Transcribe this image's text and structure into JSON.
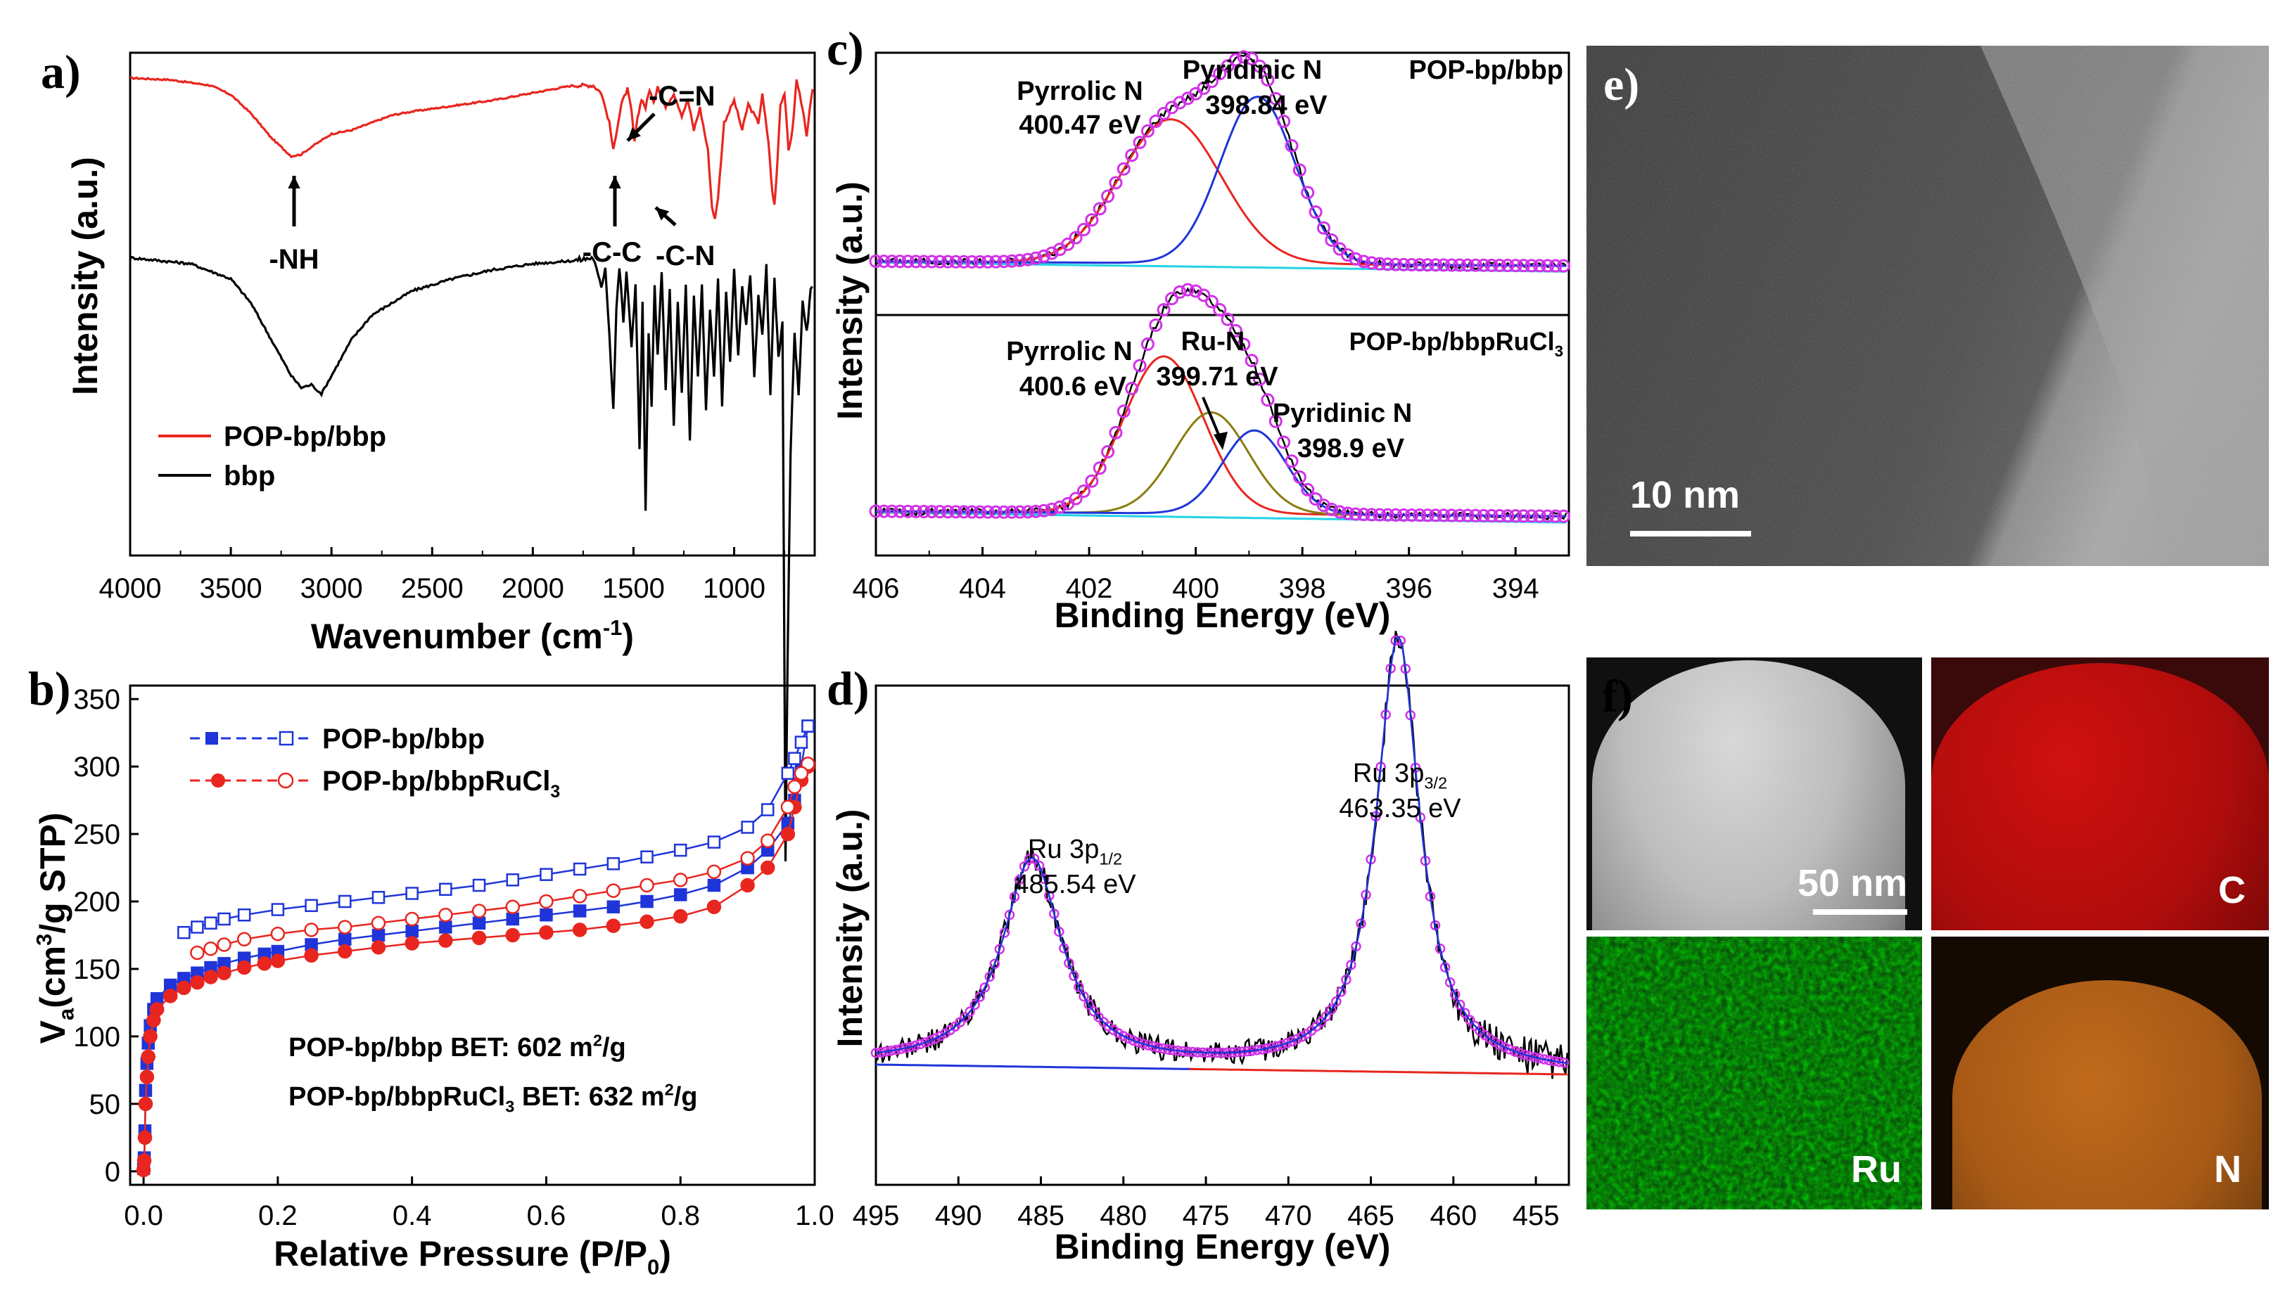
{
  "chart_data": [
    {
      "id": "a",
      "type": "line",
      "panel_label": "a)",
      "xlabel": "Wavenumber (cm",
      "xlabel_sup": "-1",
      "xlabel_tail": ")",
      "ylabel": "Intensity (a.u.)",
      "xlim": [
        4000,
        600
      ],
      "xticks": [
        4000,
        3500,
        3000,
        2500,
        2000,
        1500,
        1000
      ],
      "series": [
        {
          "name": "POP-bp/bbp",
          "color": "#e8261f",
          "offset": 1.0,
          "points": [
            [
              4000,
              0.94
            ],
            [
              3800,
              0.93
            ],
            [
              3600,
              0.9
            ],
            [
              3500,
              0.85
            ],
            [
              3400,
              0.75
            ],
            [
              3300,
              0.62
            ],
            [
              3200,
              0.52
            ],
            [
              3150,
              0.53
            ],
            [
              3100,
              0.57
            ],
            [
              3000,
              0.64
            ],
            [
              2900,
              0.66
            ],
            [
              2800,
              0.7
            ],
            [
              2700,
              0.74
            ],
            [
              2600,
              0.76
            ],
            [
              2400,
              0.79
            ],
            [
              2200,
              0.82
            ],
            [
              2000,
              0.86
            ],
            [
              1800,
              0.9
            ],
            [
              1700,
              0.9
            ],
            [
              1660,
              0.86
            ],
            [
              1620,
              0.7
            ],
            [
              1600,
              0.55
            ],
            [
              1580,
              0.68
            ],
            [
              1560,
              0.8
            ],
            [
              1530,
              0.88
            ],
            [
              1510,
              0.76
            ],
            [
              1495,
              0.6
            ],
            [
              1480,
              0.72
            ],
            [
              1460,
              0.83
            ],
            [
              1440,
              0.78
            ],
            [
              1420,
              0.88
            ],
            [
              1400,
              0.8
            ],
            [
              1380,
              0.9
            ],
            [
              1340,
              0.78
            ],
            [
              1300,
              0.86
            ],
            [
              1260,
              0.74
            ],
            [
              1230,
              0.82
            ],
            [
              1200,
              0.66
            ],
            [
              1170,
              0.78
            ],
            [
              1130,
              0.55
            ],
            [
              1110,
              0.25
            ],
            [
              1095,
              0.18
            ],
            [
              1080,
              0.3
            ],
            [
              1050,
              0.7
            ],
            [
              1000,
              0.82
            ],
            [
              960,
              0.66
            ],
            [
              930,
              0.8
            ],
            [
              880,
              0.7
            ],
            [
              860,
              0.85
            ],
            [
              830,
              0.6
            ],
            [
              810,
              0.32
            ],
            [
              800,
              0.26
            ],
            [
              790,
              0.4
            ],
            [
              770,
              0.8
            ],
            [
              750,
              0.86
            ],
            [
              730,
              0.55
            ],
            [
              710,
              0.66
            ],
            [
              690,
              0.93
            ],
            [
              660,
              0.78
            ],
            [
              640,
              0.62
            ],
            [
              625,
              0.76
            ],
            [
              610,
              0.88
            ]
          ]
        },
        {
          "name": "bbp",
          "color": "#000000",
          "offset": 0.0,
          "points": [
            [
              4000,
              0.95
            ],
            [
              3700,
              0.93
            ],
            [
              3500,
              0.88
            ],
            [
              3400,
              0.8
            ],
            [
              3300,
              0.68
            ],
            [
              3200,
              0.56
            ],
            [
              3150,
              0.52
            ],
            [
              3100,
              0.53
            ],
            [
              3050,
              0.5
            ],
            [
              3000,
              0.56
            ],
            [
              2900,
              0.68
            ],
            [
              2800,
              0.76
            ],
            [
              2600,
              0.84
            ],
            [
              2400,
              0.88
            ],
            [
              2200,
              0.91
            ],
            [
              2000,
              0.93
            ],
            [
              1800,
              0.94
            ],
            [
              1700,
              0.95
            ],
            [
              1660,
              0.85
            ],
            [
              1640,
              0.92
            ],
            [
              1620,
              0.7
            ],
            [
              1600,
              0.45
            ],
            [
              1585,
              0.78
            ],
            [
              1570,
              0.92
            ],
            [
              1550,
              0.74
            ],
            [
              1535,
              0.9
            ],
            [
              1510,
              0.66
            ],
            [
              1490,
              0.86
            ],
            [
              1470,
              0.32
            ],
            [
              1455,
              0.8
            ],
            [
              1440,
              0.12
            ],
            [
              1425,
              0.7
            ],
            [
              1410,
              0.45
            ],
            [
              1395,
              0.86
            ],
            [
              1380,
              0.62
            ],
            [
              1360,
              0.9
            ],
            [
              1340,
              0.52
            ],
            [
              1320,
              0.84
            ],
            [
              1300,
              0.4
            ],
            [
              1280,
              0.8
            ],
            [
              1260,
              0.5
            ],
            [
              1240,
              0.86
            ],
            [
              1220,
              0.34
            ],
            [
              1200,
              0.82
            ],
            [
              1180,
              0.55
            ],
            [
              1160,
              0.86
            ],
            [
              1140,
              0.45
            ],
            [
              1120,
              0.78
            ],
            [
              1100,
              0.56
            ],
            [
              1080,
              0.88
            ],
            [
              1060,
              0.46
            ],
            [
              1040,
              0.84
            ],
            [
              1020,
              0.6
            ],
            [
              1000,
              0.92
            ],
            [
              980,
              0.62
            ],
            [
              960,
              0.86
            ],
            [
              940,
              0.72
            ],
            [
              920,
              0.9
            ],
            [
              900,
              0.56
            ],
            [
              880,
              0.82
            ],
            [
              860,
              0.7
            ],
            [
              840,
              0.92
            ],
            [
              820,
              0.5
            ],
            [
              800,
              0.88
            ],
            [
              780,
              0.62
            ],
            [
              760,
              0.74
            ],
            [
              745,
              -1.05
            ],
            [
              735,
              -0.4
            ],
            [
              720,
              0.3
            ],
            [
              700,
              0.7
            ],
            [
              680,
              0.5
            ],
            [
              660,
              0.8
            ],
            [
              640,
              0.7
            ],
            [
              620,
              0.84
            ],
            [
              610,
              0.85
            ]
          ]
        }
      ],
      "legend": [
        "POP-bp/bbp",
        "bbp"
      ],
      "annotations": [
        "-NH",
        "-C-C",
        "-C=N",
        "-C-N"
      ]
    },
    {
      "id": "b",
      "type": "scatter",
      "panel_label": "b)",
      "xlabel": "Relative Pressure (P/P",
      "xlabel_sub": "0",
      "xlabel_tail": ")",
      "ylabel": "V",
      "ylabel_sub": "a",
      "ylabel_tail": "(cm",
      "ylabel_sup": "3",
      "ylabel_end": "/g STP)",
      "xlim": [
        -0.02,
        1.0
      ],
      "ylim": [
        -10,
        360
      ],
      "xticks": [
        0.0,
        0.2,
        0.4,
        0.6,
        0.8,
        1.0
      ],
      "yticks": [
        0,
        50,
        100,
        150,
        200,
        250,
        300,
        350
      ],
      "series": [
        {
          "name": "POP-bp/bbp adsorption",
          "color": "#1f35d9",
          "marker": "square-filled",
          "x": [
            0.0,
            0.001,
            0.002,
            0.003,
            0.005,
            0.007,
            0.01,
            0.015,
            0.02,
            0.04,
            0.06,
            0.08,
            0.1,
            0.12,
            0.15,
            0.18,
            0.2,
            0.25,
            0.3,
            0.35,
            0.4,
            0.45,
            0.5,
            0.55,
            0.6,
            0.65,
            0.7,
            0.75,
            0.8,
            0.85,
            0.9,
            0.93,
            0.96,
            0.97,
            0.98,
            0.99
          ],
          "y": [
            2,
            10,
            30,
            60,
            80,
            95,
            108,
            120,
            128,
            138,
            143,
            147,
            151,
            154,
            158,
            161,
            163,
            168,
            172,
            175,
            178,
            181,
            184,
            187,
            190,
            193,
            196,
            200,
            205,
            212,
            225,
            238,
            258,
            275,
            300,
            330
          ]
        },
        {
          "name": "POP-bp/bbp desorption",
          "color": "#1f35d9",
          "marker": "square-open",
          "x": [
            0.99,
            0.98,
            0.97,
            0.96,
            0.93,
            0.9,
            0.85,
            0.8,
            0.75,
            0.7,
            0.65,
            0.6,
            0.55,
            0.5,
            0.45,
            0.4,
            0.35,
            0.3,
            0.25,
            0.2,
            0.15,
            0.12,
            0.1,
            0.08,
            0.06
          ],
          "y": [
            330,
            318,
            306,
            295,
            268,
            255,
            244,
            238,
            233,
            228,
            224,
            220,
            216,
            212,
            209,
            206,
            203,
            200,
            197,
            194,
            190,
            187,
            184,
            181,
            177
          ]
        },
        {
          "name": "POP-bp/bbpRuCl3 adsorption",
          "color": "#e8261f",
          "marker": "circle-filled",
          "x": [
            0.0,
            0.001,
            0.002,
            0.003,
            0.005,
            0.007,
            0.01,
            0.015,
            0.02,
            0.04,
            0.06,
            0.08,
            0.1,
            0.12,
            0.15,
            0.18,
            0.2,
            0.25,
            0.3,
            0.35,
            0.4,
            0.45,
            0.5,
            0.55,
            0.6,
            0.65,
            0.7,
            0.75,
            0.8,
            0.85,
            0.9,
            0.93,
            0.96,
            0.97,
            0.98,
            0.99
          ],
          "y": [
            1,
            8,
            25,
            50,
            70,
            85,
            100,
            112,
            120,
            130,
            136,
            140,
            144,
            147,
            151,
            154,
            156,
            160,
            163,
            166,
            169,
            171,
            173,
            175,
            177,
            179,
            182,
            185,
            189,
            196,
            212,
            225,
            250,
            270,
            290,
            300
          ]
        },
        {
          "name": "POP-bp/bbpRuCl3 desorption",
          "color": "#e8261f",
          "marker": "circle-open",
          "x": [
            0.99,
            0.98,
            0.97,
            0.96,
            0.93,
            0.9,
            0.85,
            0.8,
            0.75,
            0.7,
            0.65,
            0.6,
            0.55,
            0.5,
            0.45,
            0.4,
            0.35,
            0.3,
            0.25,
            0.2,
            0.15,
            0.12,
            0.1,
            0.08
          ],
          "y": [
            302,
            295,
            285,
            270,
            245,
            232,
            222,
            216,
            212,
            208,
            204,
            200,
            196,
            193,
            190,
            187,
            184,
            181,
            179,
            176,
            172,
            168,
            165,
            162
          ]
        }
      ],
      "legend": [
        "POP-bp/bbp",
        "POP-bp/bbpRuCl",
        "3"
      ],
      "bet_line1": [
        "POP-bp/bbp BET: 602 m",
        "2",
        "/g"
      ],
      "bet_line2": [
        "POP-bp/bbpRuCl",
        "3",
        " BET: 632 m",
        "2",
        "/g"
      ]
    },
    {
      "id": "c",
      "type": "line",
      "panel_label": "c)",
      "xlabel": "Binding Energy (eV)",
      "ylabel": "Intensity (a.u.)",
      "xlim": [
        406,
        393
      ],
      "xticks": [
        406,
        404,
        402,
        400,
        398,
        396,
        394
      ],
      "top": {
        "sample": "POP-bp/bbp",
        "peaks": [
          {
            "name": "Pyrrolic N",
            "center": 400.47,
            "label": "400.47 eV",
            "color": "#e8261f",
            "height": 0.62,
            "width": 0.95
          },
          {
            "name": "Pyridinic N",
            "center": 398.84,
            "label": "398.84 eV",
            "color": "#1f35d9",
            "height": 0.72,
            "width": 0.7
          }
        ]
      },
      "bottom": {
        "sample": "POP-bp/bbpRuCl3",
        "sample_text": [
          "POP-bp/bbpRuCl",
          "3"
        ],
        "peaks": [
          {
            "name": "Pyrrolic N",
            "center": 400.6,
            "label": "400.6 eV",
            "color": "#e8261f",
            "height": 0.62,
            "width": 0.75
          },
          {
            "name": "Ru-N",
            "center": 399.71,
            "label": "399.71 eV",
            "color": "#8a7d10",
            "height": 0.4,
            "width": 0.7
          },
          {
            "name": "Pyridinic N",
            "center": 398.9,
            "label": "398.9 eV",
            "color": "#1f35d9",
            "height": 0.33,
            "width": 0.6
          }
        ]
      }
    },
    {
      "id": "d",
      "type": "line",
      "panel_label": "d)",
      "xlabel": "Binding Energy (eV)",
      "ylabel": "Intensity (a.u.)",
      "xlim": [
        495,
        453
      ],
      "xticks": [
        495,
        490,
        485,
        480,
        475,
        470,
        465,
        460,
        455
      ],
      "peaks": [
        {
          "name": "Ru 3p",
          "sub": "1/2",
          "center": 485.54,
          "label": "485.54 eV",
          "height": 0.42,
          "width": 2.2
        },
        {
          "name": "Ru 3p",
          "sub": "3/2",
          "center": 463.35,
          "label": "463.35 eV",
          "height": 0.88,
          "width": 1.6
        }
      ]
    }
  ],
  "panel_e": {
    "label": "e)",
    "scale_text": "10 nm"
  },
  "panel_f": {
    "label": "f)",
    "scale_text": "50 nm",
    "maps": [
      "C",
      "Ru",
      "N"
    ]
  },
  "colors": {
    "red": "#e8261f",
    "blue": "#1f35d9",
    "black": "#000000",
    "magenta": "#d232e8",
    "cyan": "#23d2e6",
    "olive": "#8a7d10"
  }
}
